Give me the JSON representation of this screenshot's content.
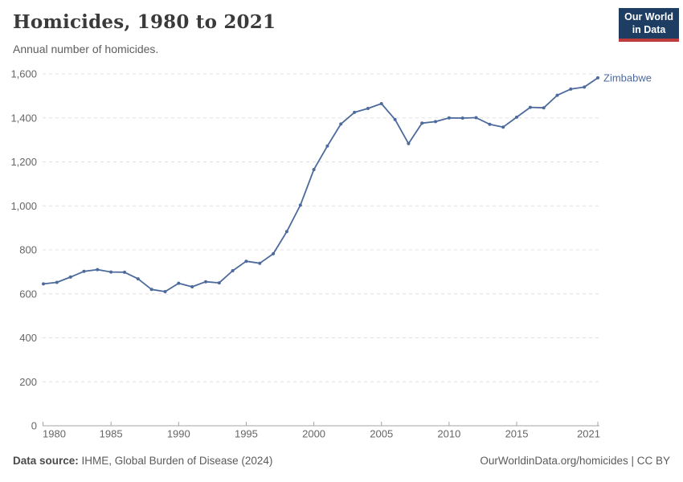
{
  "header": {
    "title": "Homicides, 1980 to 2021",
    "subtitle": "Annual number of homicides.",
    "logo": {
      "line1": "Our World",
      "line2": "in Data",
      "bg_color": "#1d3d63",
      "accent_color": "#be3c3c"
    }
  },
  "chart_data": {
    "type": "line",
    "title": "Homicides, 1980 to 2021",
    "subtitle": "Annual number of homicides.",
    "xlabel": "",
    "ylabel": "",
    "grid": "horizontal-dashed",
    "legend_position": "end-of-line-label",
    "ylim": [
      0,
      1600
    ],
    "yticks": [
      0,
      200,
      400,
      600,
      800,
      1000,
      1200,
      1400,
      1600
    ],
    "xticks": [
      1980,
      1985,
      1990,
      1995,
      2000,
      2005,
      2010,
      2015,
      2021
    ],
    "x": [
      1980,
      1981,
      1982,
      1983,
      1984,
      1985,
      1986,
      1987,
      1988,
      1989,
      1990,
      1991,
      1992,
      1993,
      1994,
      1995,
      1996,
      1997,
      1998,
      1999,
      2000,
      2001,
      2002,
      2003,
      2004,
      2005,
      2006,
      2007,
      2008,
      2009,
      2010,
      2011,
      2012,
      2013,
      2014,
      2015,
      2016,
      2017,
      2018,
      2019,
      2020,
      2021
    ],
    "series": [
      {
        "name": "Zimbabwe",
        "color": "#4c6a9c",
        "values": [
          645,
          652,
          676,
          702,
          710,
          699,
          698,
          668,
          620,
          610,
          648,
          632,
          655,
          650,
          705,
          748,
          739,
          782,
          883,
          1003,
          1165,
          1272,
          1372,
          1425,
          1443,
          1465,
          1393,
          1283,
          1376,
          1383,
          1400,
          1399,
          1401,
          1371,
          1358,
          1403,
          1448,
          1446,
          1503,
          1531,
          1540,
          1582
        ]
      }
    ],
    "axis_color": "#a5a5a5",
    "gridline_color": "#e0e0e0",
    "tick_label_color": "#666666"
  },
  "footer": {
    "source_label": "Data source:",
    "source_text": "IHME, Global Burden of Disease (2024)",
    "license": "OurWorldinData.org/homicides | CC BY"
  }
}
